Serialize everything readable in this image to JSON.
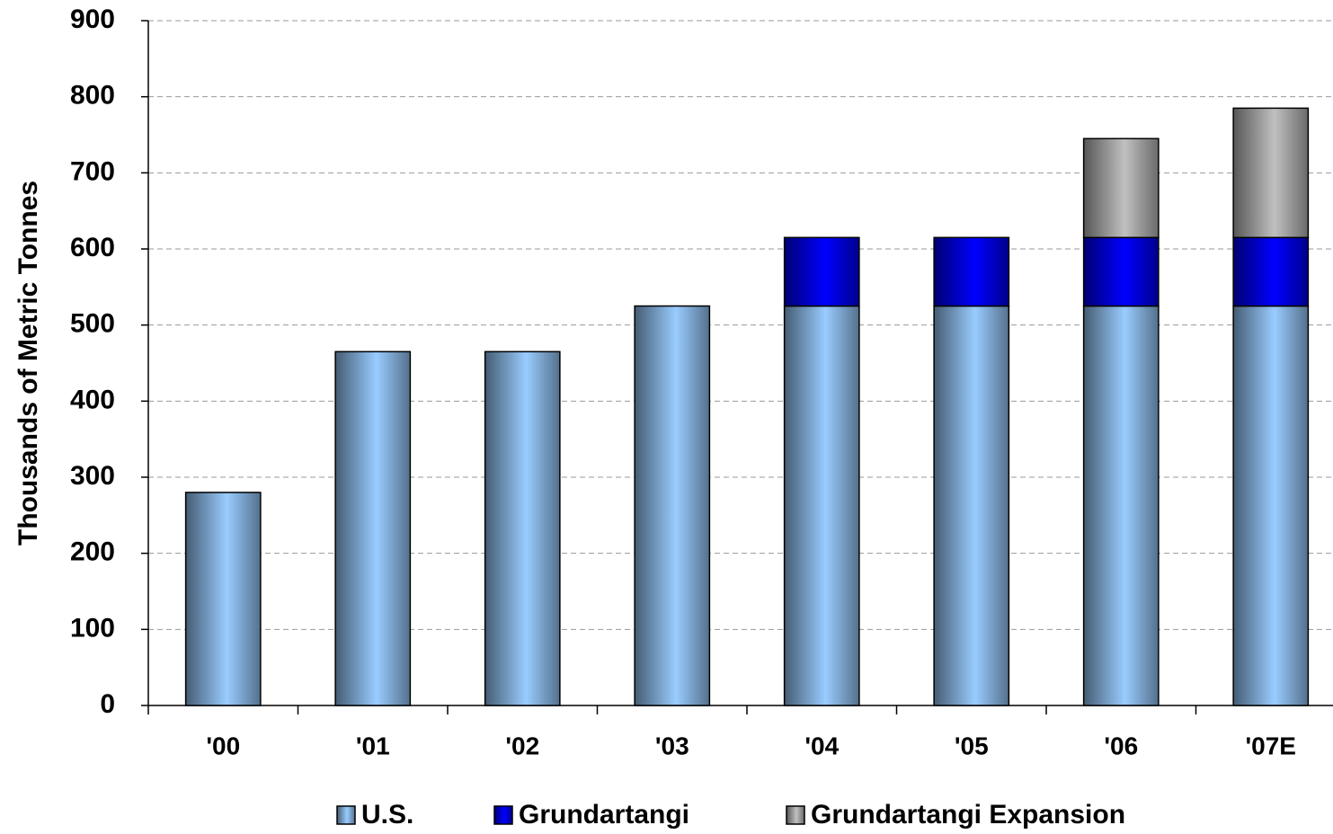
{
  "chart_data": {
    "type": "stacked_bar",
    "y_label": "Thousands of Metric Tonnes",
    "categories": [
      "'00",
      "'01",
      "'02",
      "'03",
      "'04",
      "'05",
      "'06",
      "'07E"
    ],
    "series": [
      {
        "name": "U.S.",
        "color": "#99ccff",
        "values": [
          280,
          465,
          465,
          525,
          525,
          525,
          525,
          525
        ]
      },
      {
        "name": "Grundartangi",
        "color": "#0000ff",
        "values": [
          null,
          null,
          null,
          null,
          90,
          90,
          90,
          90
        ]
      },
      {
        "name": "Grundartangi Expansion",
        "color": "#c0c0c0",
        "values": [
          null,
          null,
          null,
          null,
          null,
          null,
          130,
          170
        ]
      }
    ],
    "ylim": [
      0,
      900
    ],
    "yticks": [
      0,
      100,
      200,
      300,
      400,
      500,
      600,
      700,
      800,
      900
    ],
    "grid": true
  }
}
